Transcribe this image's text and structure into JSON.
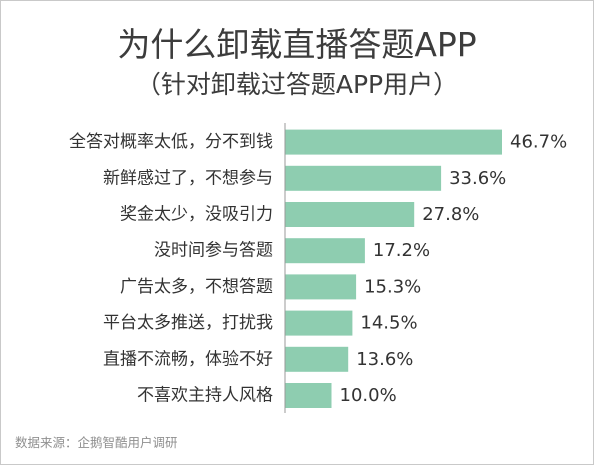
{
  "header": {
    "title": "为什么卸载直播答题APP",
    "subtitle": "（针对卸载过答题APP用户）"
  },
  "footer": {
    "source": "数据来源：企鹅智酷用户调研"
  },
  "colors": {
    "bar": "#8ecdb0",
    "axis": "#999999",
    "text": "#333333"
  },
  "chart_data": {
    "type": "bar",
    "orientation": "horizontal",
    "categories": [
      "全答对概率太低，分不到钱",
      "新鲜感过了，不想参与",
      "奖金太少，没吸引力",
      "没时间参与答题",
      "广告太多，不想答题",
      "平台太多推送，打扰我",
      "直播不流畅，体验不好",
      "不喜欢主持人风格"
    ],
    "values": [
      46.7,
      33.6,
      27.8,
      17.2,
      15.3,
      14.5,
      13.6,
      10.0
    ],
    "value_labels": [
      "46.7%",
      "33.6%",
      "27.8%",
      "17.2%",
      "15.3%",
      "14.5%",
      "13.6%",
      "10.0%"
    ],
    "unit": "%",
    "xlim": [
      0,
      46.7
    ],
    "grid": false,
    "legend": "none"
  }
}
